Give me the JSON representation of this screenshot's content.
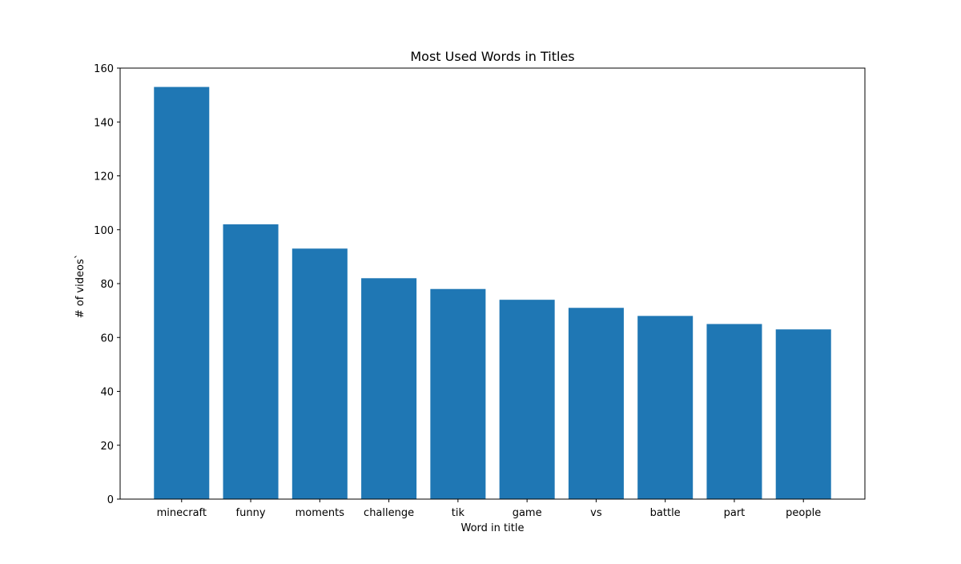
{
  "chart_data": {
    "type": "bar",
    "title": "Most Used Words in Titles",
    "xlabel": "Word in title",
    "ylabel": "# of videos`",
    "categories": [
      "minecraft",
      "funny",
      "moments",
      "challenge",
      "tik",
      "game",
      "vs",
      "battle",
      "part",
      "people"
    ],
    "values": [
      153,
      102,
      93,
      82,
      78,
      74,
      71,
      68,
      65,
      63
    ],
    "ylim": [
      0,
      160
    ],
    "yticks": [
      0,
      20,
      40,
      60,
      80,
      100,
      120,
      140,
      160
    ],
    "grid": false,
    "legend": "none",
    "bar_color": "#1f77b4"
  }
}
